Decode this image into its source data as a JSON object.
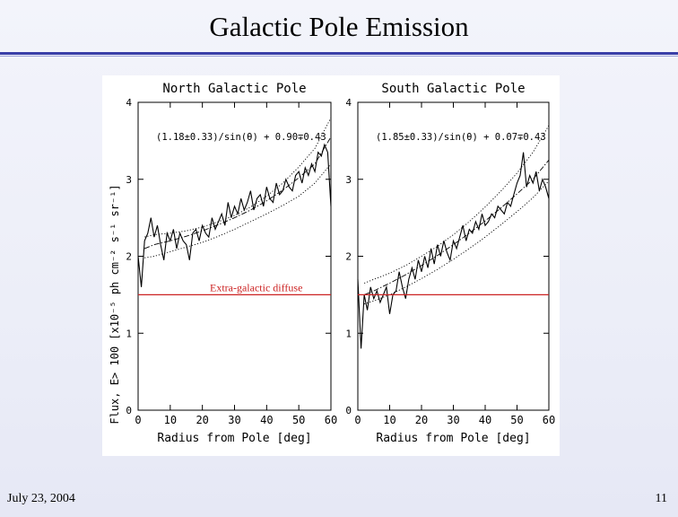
{
  "slide": {
    "title": "Galactic Pole Emission",
    "date": "July 23, 2004",
    "page": "11"
  },
  "colors": {
    "accent": "#3a3fa8",
    "reference_line": "#cc2222"
  },
  "chart_data": [
    {
      "type": "line",
      "title": "North Galactic Pole",
      "xlabel": "Radius from Pole [deg]",
      "ylabel": "Flux, E> 100 [x10⁻⁵ ph cm⁻² s⁻¹ sr⁻¹]",
      "xlim": [
        0,
        60
      ],
      "ylim": [
        0,
        4
      ],
      "xticks": [
        "0",
        "10",
        "20",
        "30",
        "40",
        "50",
        "60"
      ],
      "yticks": [
        "0",
        "1",
        "2",
        "3",
        "4"
      ],
      "annotation": "(1.18±0.33)/sin(θ) + 0.90∓0.43",
      "reference_line": {
        "label": "Extra-galactic diffuse",
        "y": 1.5
      },
      "series": [
        {
          "style": "solid",
          "x": [
            0,
            1,
            2,
            3,
            4,
            5,
            6,
            7,
            8,
            9,
            10,
            11,
            12,
            13,
            14,
            15,
            16,
            17,
            18,
            19,
            20,
            21,
            22,
            23,
            24,
            25,
            26,
            27,
            28,
            29,
            30,
            31,
            32,
            33,
            34,
            35,
            36,
            37,
            38,
            39,
            40,
            41,
            42,
            43,
            44,
            45,
            46,
            47,
            48,
            49,
            50,
            51,
            52,
            53,
            54,
            55,
            56,
            57,
            58,
            59,
            60
          ],
          "y": [
            2.0,
            1.6,
            2.2,
            2.3,
            2.5,
            2.25,
            2.4,
            2.15,
            1.95,
            2.3,
            2.2,
            2.35,
            2.1,
            2.3,
            2.2,
            2.15,
            1.95,
            2.3,
            2.35,
            2.2,
            2.4,
            2.3,
            2.25,
            2.5,
            2.35,
            2.45,
            2.55,
            2.4,
            2.7,
            2.5,
            2.65,
            2.55,
            2.75,
            2.6,
            2.7,
            2.85,
            2.6,
            2.75,
            2.8,
            2.65,
            2.9,
            2.75,
            2.7,
            2.95,
            2.8,
            2.85,
            3.0,
            2.9,
            2.85,
            3.05,
            3.1,
            2.95,
            3.15,
            3.05,
            3.2,
            3.1,
            3.35,
            3.3,
            3.45,
            3.35,
            2.65
          ]
        },
        {
          "style": "dashdot",
          "x": [
            2,
            5,
            10,
            15,
            20,
            25,
            30,
            35,
            40,
            45,
            50,
            55,
            60
          ],
          "y": [
            2.1,
            2.15,
            2.2,
            2.26,
            2.33,
            2.41,
            2.5,
            2.6,
            2.72,
            2.86,
            3.02,
            3.2,
            3.55
          ]
        },
        {
          "style": "dotted",
          "x": [
            2,
            5,
            10,
            15,
            20,
            25,
            30,
            35,
            40,
            45,
            50,
            55,
            60
          ],
          "y": [
            2.25,
            2.28,
            2.3,
            2.33,
            2.38,
            2.45,
            2.53,
            2.64,
            2.78,
            2.95,
            3.16,
            3.4,
            3.8
          ]
        },
        {
          "style": "dotted",
          "x": [
            2,
            5,
            10,
            15,
            20,
            25,
            30,
            35,
            40,
            45,
            50,
            55,
            60
          ],
          "y": [
            1.98,
            2.0,
            2.06,
            2.12,
            2.18,
            2.26,
            2.35,
            2.45,
            2.55,
            2.66,
            2.78,
            2.95,
            3.2
          ]
        }
      ]
    },
    {
      "type": "line",
      "title": "South Galactic Pole",
      "xlabel": "Radius from Pole [deg]",
      "ylabel": "",
      "xlim": [
        0,
        60
      ],
      "ylim": [
        0,
        4
      ],
      "xticks": [
        "0",
        "10",
        "20",
        "30",
        "40",
        "50",
        "60"
      ],
      "yticks": [
        "0",
        "1",
        "2",
        "3",
        "4"
      ],
      "annotation": "(1.85±0.33)/sin(θ) + 0.07∓0.43",
      "reference_line": {
        "label": "",
        "y": 1.5
      },
      "series": [
        {
          "style": "solid",
          "x": [
            0,
            1,
            2,
            3,
            4,
            5,
            6,
            7,
            8,
            9,
            10,
            11,
            12,
            13,
            14,
            15,
            16,
            17,
            18,
            19,
            20,
            21,
            22,
            23,
            24,
            25,
            26,
            27,
            28,
            29,
            30,
            31,
            32,
            33,
            34,
            35,
            36,
            37,
            38,
            39,
            40,
            41,
            42,
            43,
            44,
            45,
            46,
            47,
            48,
            49,
            50,
            51,
            52,
            53,
            54,
            55,
            56,
            57,
            58,
            59,
            60
          ],
          "y": [
            1.7,
            0.8,
            1.5,
            1.3,
            1.6,
            1.45,
            1.55,
            1.4,
            1.5,
            1.6,
            1.25,
            1.5,
            1.55,
            1.8,
            1.6,
            1.45,
            1.7,
            1.85,
            1.7,
            1.95,
            1.8,
            2.0,
            1.85,
            2.1,
            1.9,
            2.15,
            2.0,
            2.2,
            2.05,
            1.95,
            2.2,
            2.1,
            2.25,
            2.4,
            2.2,
            2.35,
            2.3,
            2.45,
            2.35,
            2.55,
            2.4,
            2.45,
            2.55,
            2.5,
            2.65,
            2.6,
            2.55,
            2.7,
            2.65,
            2.8,
            2.95,
            3.05,
            3.35,
            2.9,
            3.05,
            2.95,
            3.1,
            2.85,
            3.0,
            2.9,
            2.75
          ]
        },
        {
          "style": "dashdot",
          "x": [
            2,
            5,
            10,
            15,
            20,
            25,
            30,
            35,
            40,
            45,
            50,
            55,
            60
          ],
          "y": [
            1.5,
            1.55,
            1.65,
            1.76,
            1.88,
            2.01,
            2.15,
            2.3,
            2.46,
            2.63,
            2.81,
            3.0,
            3.25
          ]
        },
        {
          "style": "dotted",
          "x": [
            2,
            5,
            10,
            15,
            20,
            25,
            30,
            35,
            40,
            45,
            50,
            55,
            60
          ],
          "y": [
            1.65,
            1.7,
            1.78,
            1.88,
            2.0,
            2.13,
            2.28,
            2.45,
            2.64,
            2.85,
            3.08,
            3.35,
            3.7
          ]
        },
        {
          "style": "dotted",
          "x": [
            2,
            5,
            10,
            15,
            20,
            25,
            30,
            35,
            40,
            45,
            50,
            55,
            60
          ],
          "y": [
            1.38,
            1.42,
            1.5,
            1.6,
            1.71,
            1.83,
            1.96,
            2.1,
            2.25,
            2.41,
            2.58,
            2.76,
            2.98
          ]
        }
      ]
    }
  ]
}
